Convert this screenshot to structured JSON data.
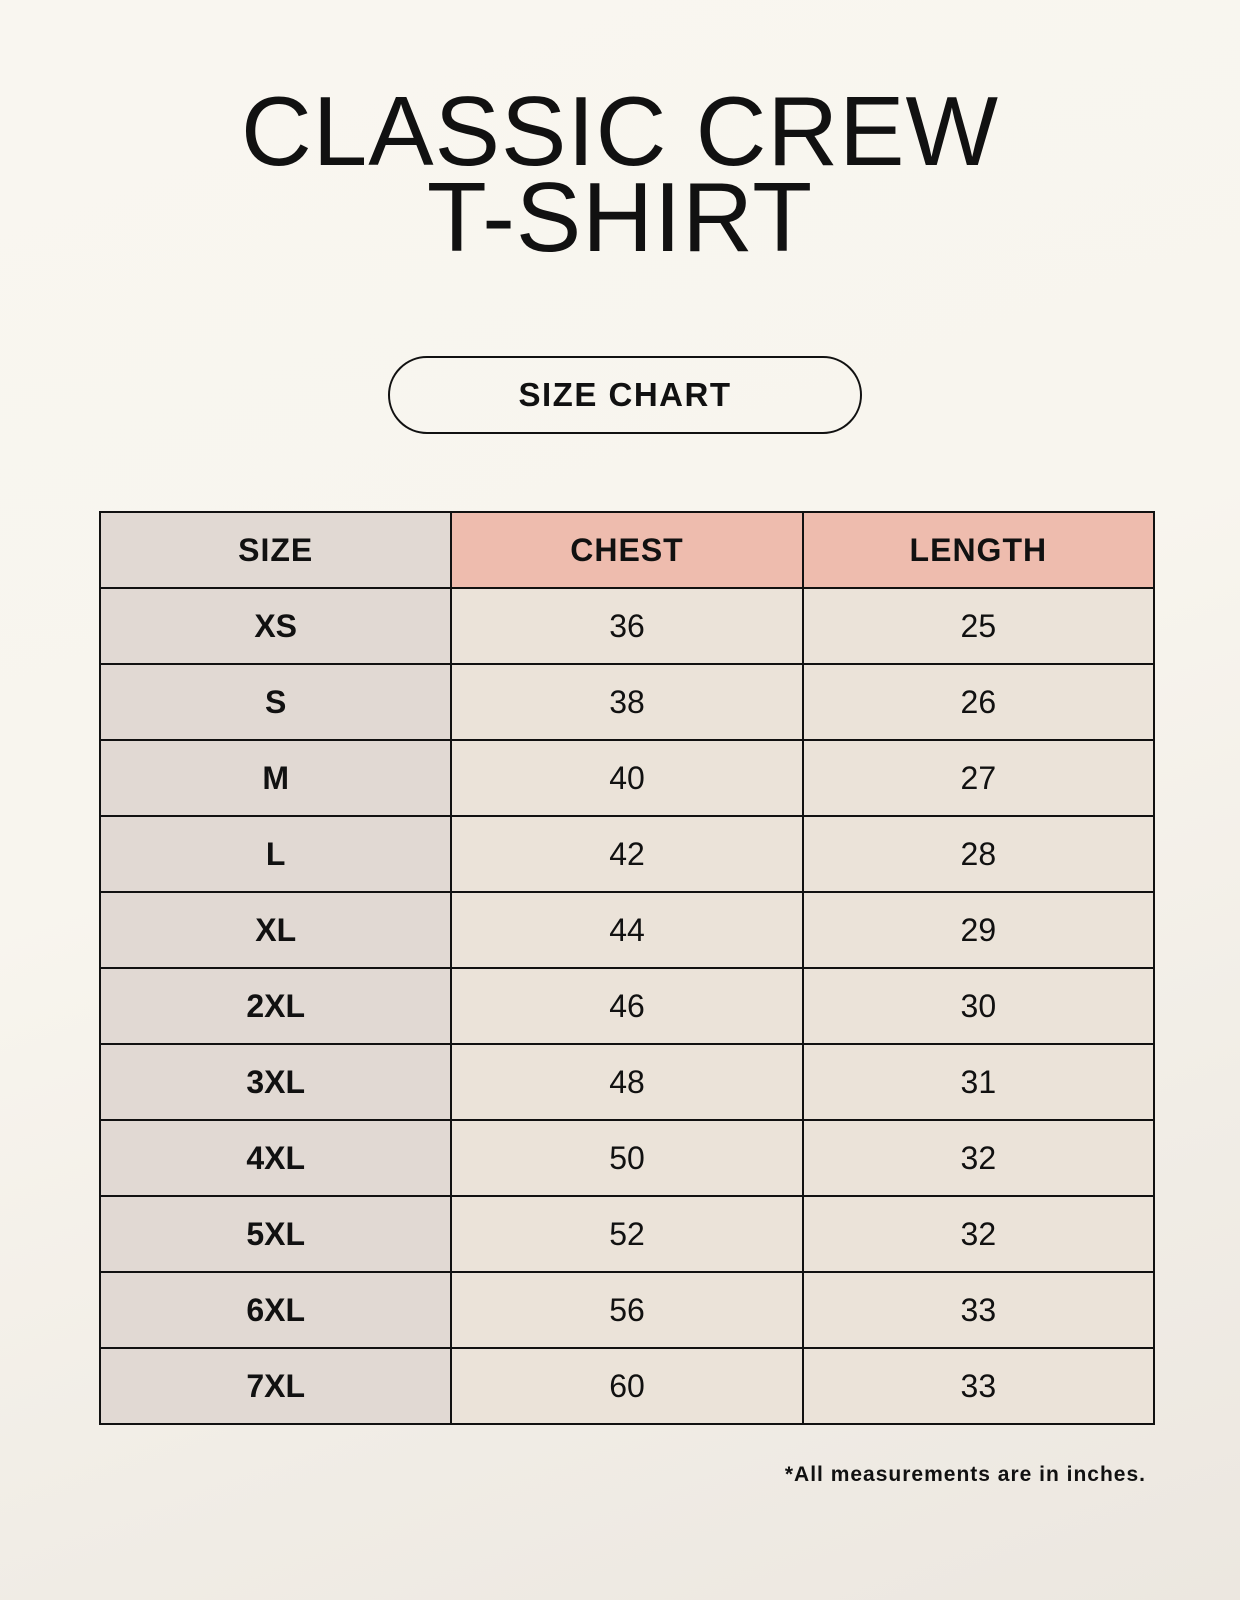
{
  "title": {
    "line1": "CLASSIC CREW",
    "line2": "T-SHIRT"
  },
  "subtitle": "SIZE CHART",
  "table": {
    "headers": [
      "SIZE",
      "CHEST",
      "LENGTH"
    ],
    "rows": [
      [
        "XS",
        "36",
        "25"
      ],
      [
        "S",
        "38",
        "26"
      ],
      [
        "M",
        "40",
        "27"
      ],
      [
        "L",
        "42",
        "28"
      ],
      [
        "XL",
        "44",
        "29"
      ],
      [
        "2XL",
        "46",
        "30"
      ],
      [
        "3XL",
        "48",
        "31"
      ],
      [
        "4XL",
        "50",
        "32"
      ],
      [
        "5XL",
        "52",
        "32"
      ],
      [
        "6XL",
        "56",
        "33"
      ],
      [
        "7XL",
        "60",
        "33"
      ]
    ]
  },
  "footnote": "*All measurements are in inches.",
  "colors": {
    "header_highlight": "#eebcae",
    "size_column": "#e1d9d3",
    "value_cells": "#ebe3d9"
  }
}
